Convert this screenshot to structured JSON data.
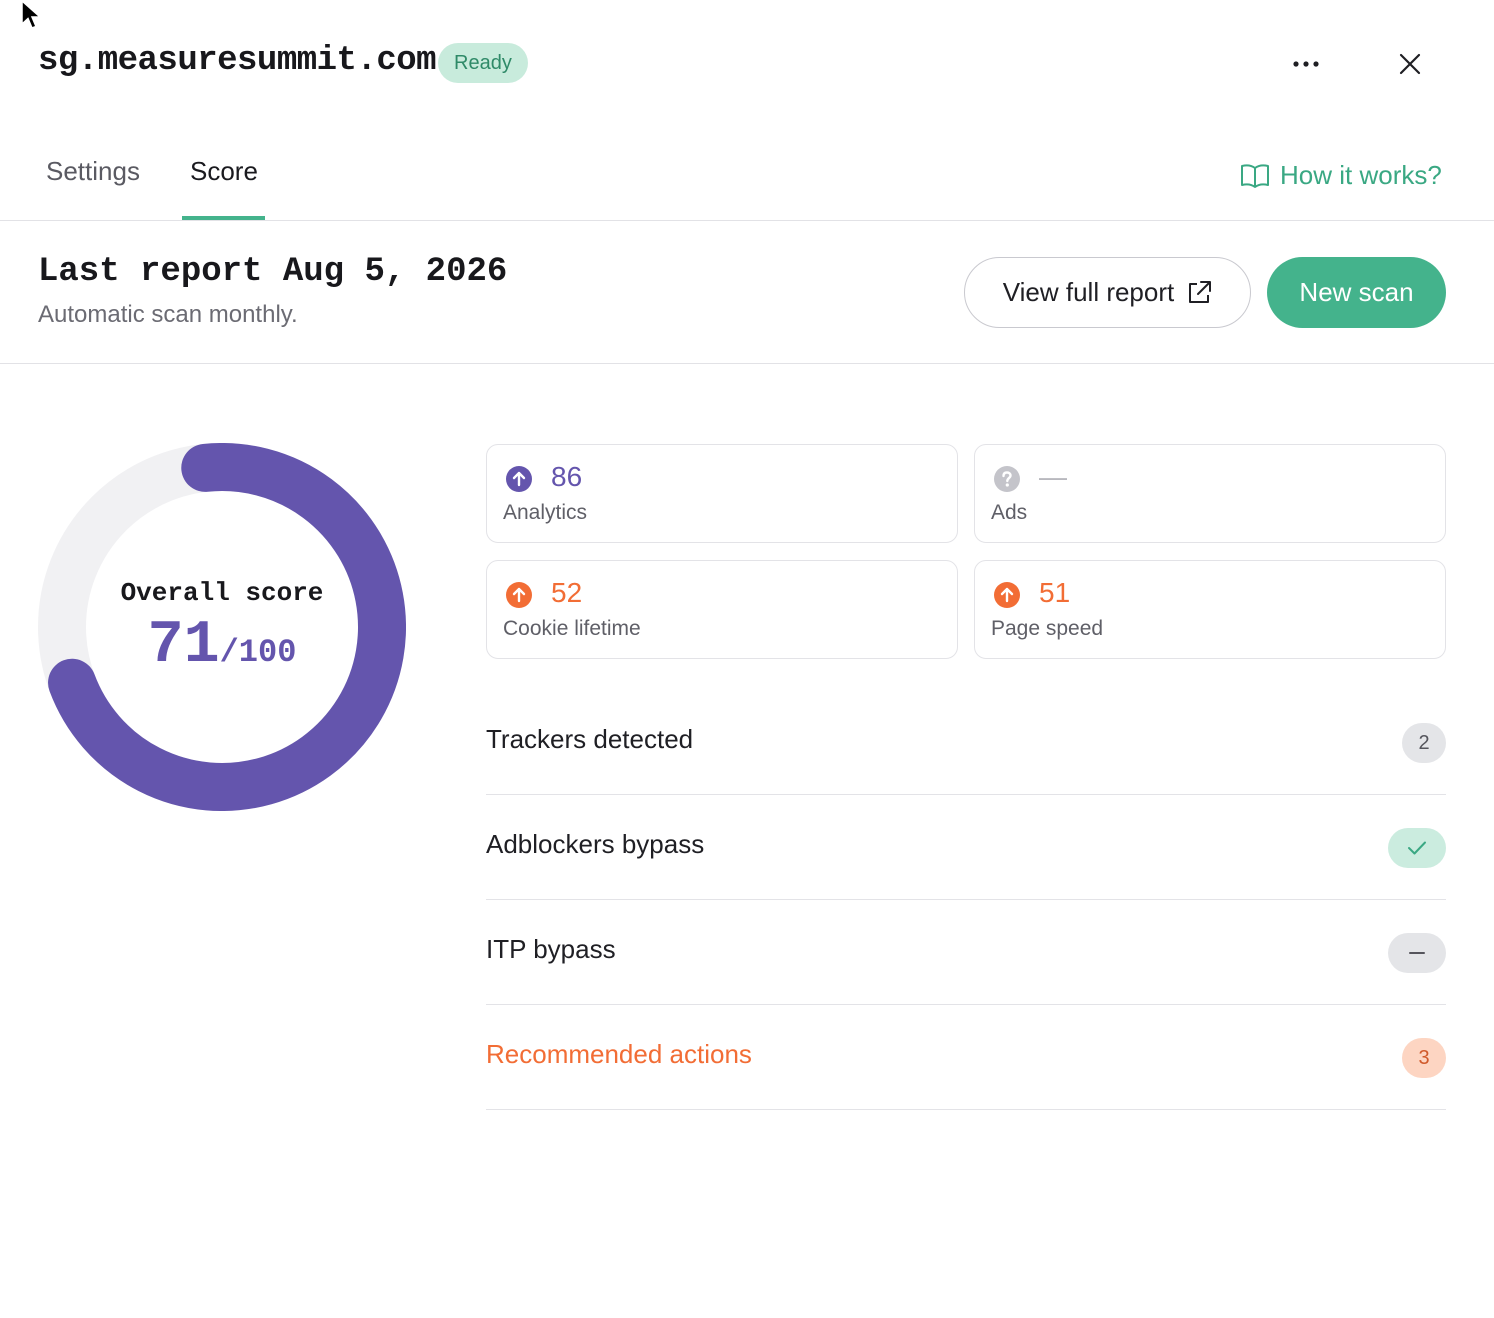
{
  "header": {
    "domain": "sg.measuresummit.com",
    "status": "Ready"
  },
  "tabs": [
    {
      "label": "Settings"
    },
    {
      "label": "Score"
    }
  ],
  "how_it_works": "How it works?",
  "report": {
    "title": "Last report Aug 5, 2026",
    "subtitle": "Automatic scan monthly.",
    "view_full_report": "View full report",
    "new_scan": "New scan"
  },
  "overall": {
    "label": "Overall score",
    "score": "71",
    "max": "/100",
    "fraction": 0.71
  },
  "metrics": [
    {
      "value": "86",
      "label": "Analytics",
      "icon": "arrow-up-circle-icon",
      "color": "#6455ad"
    },
    {
      "value": "—",
      "label": "Ads",
      "icon": "question-circle-icon",
      "color": "#c4c4ca"
    },
    {
      "value": "52",
      "label": "Cookie lifetime",
      "icon": "arrow-up-circle-icon",
      "color": "#f26d35"
    },
    {
      "value": "51",
      "label": "Page speed",
      "icon": "arrow-up-circle-icon",
      "color": "#f26d35"
    }
  ],
  "rows": [
    {
      "label": "Trackers detected",
      "badge": "2"
    },
    {
      "label": "Adblockers bypass",
      "badge_icon": "check-icon"
    },
    {
      "label": "ITP bypass",
      "badge_icon": "minus-icon"
    },
    {
      "label": "Recommended actions",
      "badge": "3"
    }
  ],
  "colors": {
    "accent": "#44b38c",
    "score": "#6455ad",
    "warning": "#f26d35"
  }
}
